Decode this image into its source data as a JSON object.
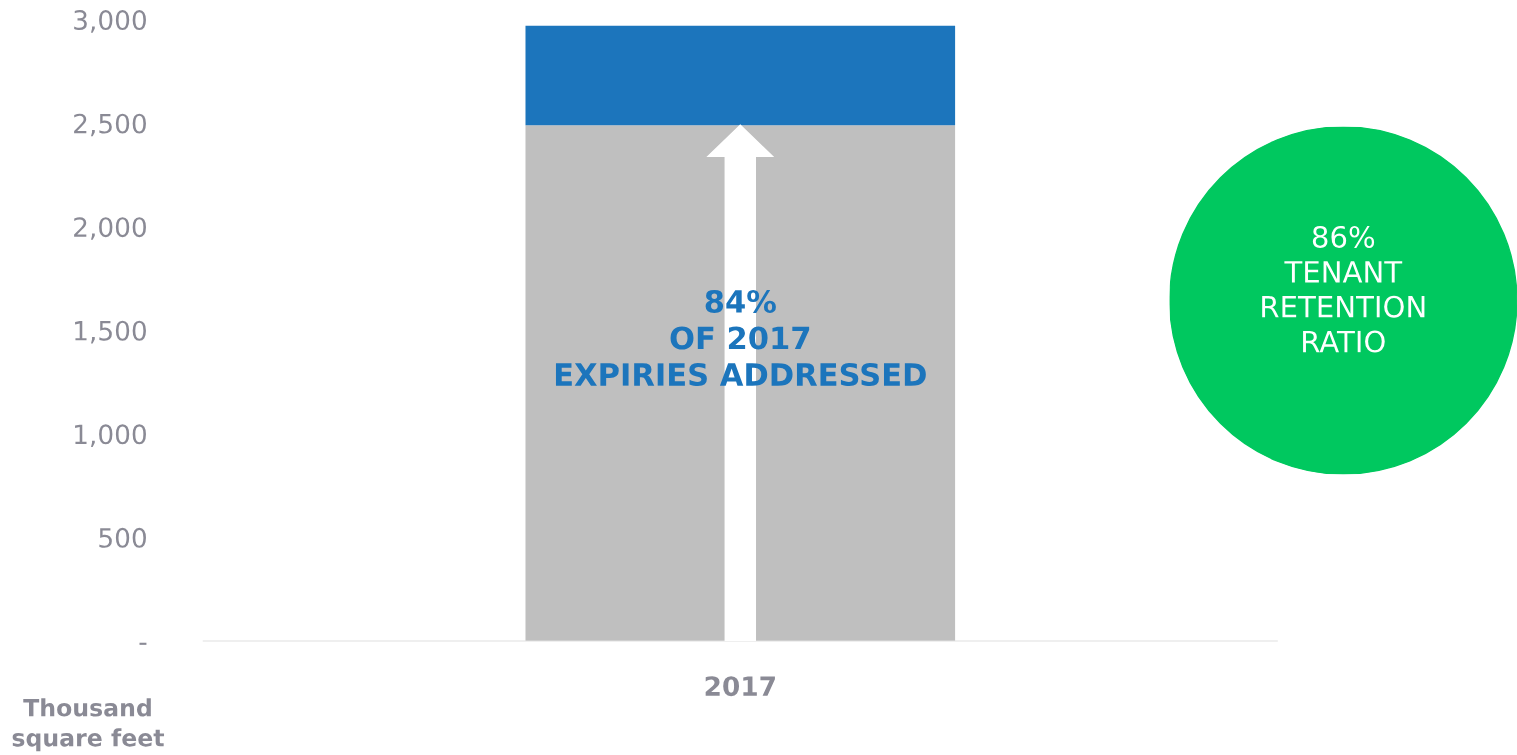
{
  "chart_data": {
    "type": "bar",
    "stacked": true,
    "categories": [
      "2017"
    ],
    "series": [
      {
        "color": "#bfbfbf",
        "values": [
          2490
        ]
      },
      {
        "color": "#1c75bc",
        "values": [
          480
        ]
      }
    ],
    "ylabel": "Thousand\nsquare feet",
    "ylim": [
      0,
      3000
    ],
    "yticks": [
      {
        "value": 0,
        "label": "-"
      },
      500,
      {
        "value": 1000,
        "label": "1,000"
      },
      {
        "value": 1500,
        "label": "1,500"
      },
      {
        "value": 2000,
        "label": "2,000"
      },
      {
        "value": 2500,
        "label": "2,500"
      },
      {
        "value": 3000,
        "label": "3,000"
      }
    ],
    "grid": false,
    "legend": false,
    "annotations": [
      "84%\nOF 2017\nEXPIRIES ADDRESSED",
      "86%\nTENANT\nRETENTION\nRATIO"
    ]
  }
}
